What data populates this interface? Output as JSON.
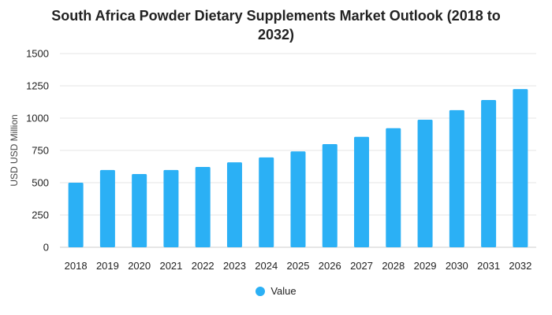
{
  "colors": {
    "bar": "#2bb0f5",
    "grid": "#e6e6e6",
    "baseline": "#cccccc"
  },
  "chart_data": {
    "type": "bar",
    "title_line1": "South Africa Powder Dietary Supplements Market Outlook (2018 to",
    "title_line2": "2032)",
    "ylabel": "USD USD Million",
    "xlabel": "",
    "ylim": [
      0,
      1500
    ],
    "yticks": [
      0,
      250,
      500,
      750,
      1000,
      1250,
      1500
    ],
    "grid": true,
    "legend_position": "bottom",
    "categories": [
      "2018",
      "2019",
      "2020",
      "2021",
      "2022",
      "2023",
      "2024",
      "2025",
      "2026",
      "2027",
      "2028",
      "2029",
      "2030",
      "2031",
      "2032"
    ],
    "series": [
      {
        "name": "Value",
        "values": [
          500,
          598,
          567,
          598,
          622,
          658,
          696,
          742,
          799,
          855,
          922,
          988,
          1062,
          1140,
          1225
        ]
      }
    ]
  }
}
